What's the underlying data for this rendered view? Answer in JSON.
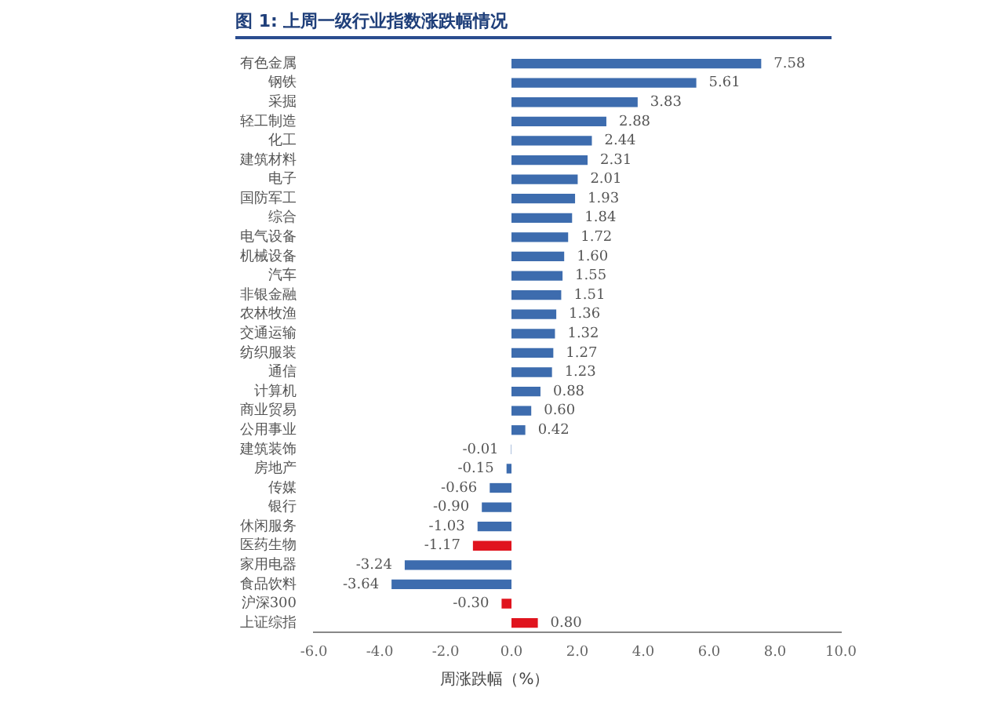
{
  "chart_data": {
    "type": "bar",
    "orientation": "horizontal",
    "title": "图 1: 上周一级行业指数涨跌幅情况",
    "xlabel": "周涨跌幅（%）",
    "categories": [
      "有色金属",
      "钢铁",
      "采掘",
      "轻工制造",
      "化工",
      "建筑材料",
      "电子",
      "国防军工",
      "综合",
      "电气设备",
      "机械设备",
      "汽车",
      "非银金融",
      "农林牧渔",
      "交通运输",
      "纺织服装",
      "通信",
      "计算机",
      "商业贸易",
      "公用事业",
      "建筑装饰",
      "房地产",
      "传媒",
      "银行",
      "休闲服务",
      "医药生物",
      "家用电器",
      "食品饮料",
      "沪深300",
      "上证综指"
    ],
    "values": [
      7.58,
      5.61,
      3.83,
      2.88,
      2.44,
      2.31,
      2.01,
      1.93,
      1.84,
      1.72,
      1.6,
      1.55,
      1.51,
      1.36,
      1.32,
      1.27,
      1.23,
      0.88,
      0.6,
      0.42,
      -0.01,
      -0.15,
      -0.66,
      -0.9,
      -1.03,
      -1.17,
      -3.24,
      -3.64,
      -0.3,
      0.8
    ],
    "value_labels": [
      "7.58",
      "5.61",
      "3.83",
      "2.88",
      "2.44",
      "2.31",
      "2.01",
      "1.93",
      "1.84",
      "1.72",
      "1.60",
      "1.55",
      "1.51",
      "1.36",
      "1.32",
      "1.27",
      "1.23",
      "0.88",
      "0.60",
      "0.42",
      "-0.01",
      "-0.15",
      "-0.66",
      "-0.90",
      "-1.03",
      "-1.17",
      "-3.24",
      "-3.64",
      "-0.30",
      "0.80"
    ],
    "colors": [
      "#3d6cae",
      "#3d6cae",
      "#3d6cae",
      "#3d6cae",
      "#3d6cae",
      "#3d6cae",
      "#3d6cae",
      "#3d6cae",
      "#3d6cae",
      "#3d6cae",
      "#3d6cae",
      "#3d6cae",
      "#3d6cae",
      "#3d6cae",
      "#3d6cae",
      "#3d6cae",
      "#3d6cae",
      "#3d6cae",
      "#3d6cae",
      "#3d6cae",
      "#3d6cae",
      "#3d6cae",
      "#3d6cae",
      "#3d6cae",
      "#3d6cae",
      "#e0141e",
      "#3d6cae",
      "#3d6cae",
      "#e0141e",
      "#e0141e"
    ],
    "xlim": [
      -6,
      10
    ],
    "xticks": [
      {
        "value": -6,
        "label": "-6.0"
      },
      {
        "value": -4,
        "label": "-4.0"
      },
      {
        "value": -2,
        "label": "-2.0"
      },
      {
        "value": 0,
        "label": "0.0"
      },
      {
        "value": 2,
        "label": "2.0"
      },
      {
        "value": 4,
        "label": "4.0"
      },
      {
        "value": 6,
        "label": "6.0"
      },
      {
        "value": 8,
        "label": "8.0"
      },
      {
        "value": 10,
        "label": "10.0"
      }
    ],
    "grid": false
  }
}
